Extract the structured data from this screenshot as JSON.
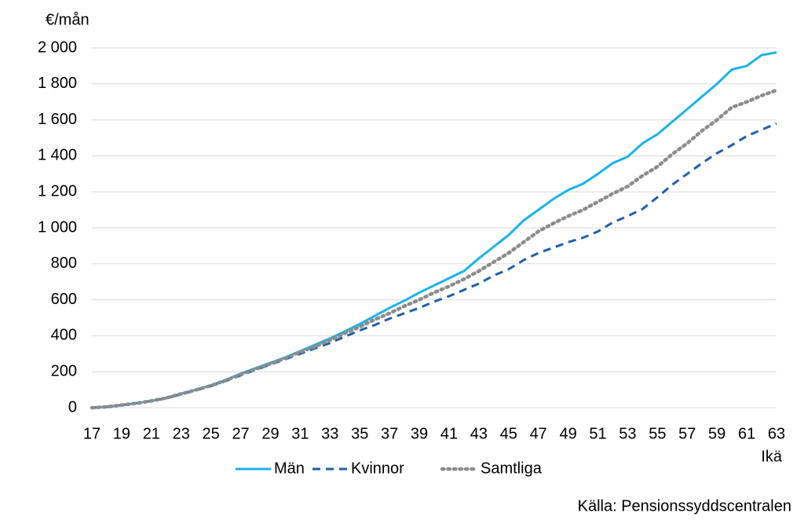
{
  "chart_data": {
    "type": "line",
    "y_label": "€/mån",
    "x_label": "Ikä",
    "source": "Källa: Pensionssyddscentralen",
    "x": [
      17,
      18,
      19,
      20,
      21,
      22,
      23,
      24,
      25,
      26,
      27,
      28,
      29,
      30,
      31,
      32,
      33,
      34,
      35,
      36,
      37,
      38,
      39,
      40,
      41,
      42,
      43,
      44,
      45,
      46,
      47,
      48,
      49,
      50,
      51,
      52,
      53,
      54,
      55,
      56,
      57,
      58,
      59,
      60,
      61,
      62,
      63
    ],
    "xlim": [
      17,
      63
    ],
    "xticks": [
      17,
      19,
      21,
      23,
      25,
      27,
      29,
      31,
      33,
      35,
      37,
      39,
      41,
      43,
      45,
      47,
      49,
      51,
      53,
      55,
      57,
      59,
      61,
      63
    ],
    "ylim": [
      0,
      2000
    ],
    "yticks": [
      0,
      200,
      400,
      600,
      800,
      {
        "value": 1000,
        "label": "1 000"
      },
      {
        "value": 1200,
        "label": "1 200"
      },
      {
        "value": 1400,
        "label": "1 400"
      },
      {
        "value": 1600,
        "label": "1 600"
      },
      {
        "value": 1800,
        "label": "1 800"
      },
      {
        "value": 2000,
        "label": "2 000"
      }
    ],
    "grid": true,
    "legend": "bottom",
    "series": [
      {
        "name": "Män",
        "color": "#1ab3ea",
        "dash": "solid",
        "values": [
          0,
          5,
          15,
          25,
          38,
          55,
          78,
          100,
          125,
          155,
          190,
          220,
          250,
          280,
          315,
          350,
          385,
          425,
          465,
          510,
          555,
          595,
          640,
          680,
          720,
          760,
          830,
          895,
          960,
          1040,
          1100,
          1160,
          1210,
          1245,
          1300,
          1360,
          1395,
          1470,
          1520,
          1590,
          1660,
          1730,
          1800,
          1880,
          1900,
          1960,
          1975
        ]
      },
      {
        "name": "Kvinnor",
        "color": "#1f5fae",
        "dash": "dashed",
        "values": [
          0,
          5,
          15,
          25,
          38,
          52,
          75,
          97,
          120,
          148,
          180,
          210,
          240,
          270,
          300,
          330,
          360,
          395,
          430,
          460,
          495,
          525,
          555,
          590,
          620,
          655,
          690,
          735,
          770,
          820,
          860,
          890,
          920,
          945,
          980,
          1030,
          1065,
          1105,
          1170,
          1240,
          1300,
          1360,
          1415,
          1460,
          1510,
          1545,
          1580
        ]
      },
      {
        "name": "Samtliga",
        "color": "#8c8c8c",
        "dash": "dotted",
        "values": [
          0,
          5,
          15,
          25,
          38,
          54,
          77,
          99,
          123,
          152,
          185,
          215,
          245,
          275,
          310,
          340,
          375,
          415,
          450,
          490,
          525,
          565,
          600,
          640,
          675,
          715,
          760,
          810,
          860,
          920,
          980,
          1025,
          1065,
          1100,
          1145,
          1190,
          1230,
          1290,
          1340,
          1410,
          1470,
          1540,
          1600,
          1670,
          1700,
          1735,
          1765
        ]
      }
    ]
  }
}
